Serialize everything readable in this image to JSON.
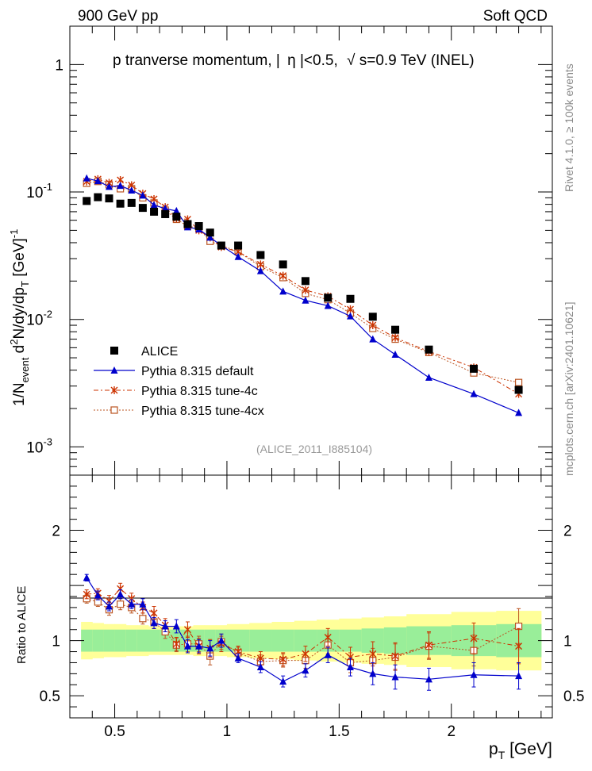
{
  "header": {
    "left": "900 GeV pp",
    "right": "Soft QCD"
  },
  "side": {
    "rivet": "Rivet 4.1.0, ≥ 100k events",
    "mcplots": "mcplots.cern.ch [arXiv:2401.10621]"
  },
  "colors": {
    "alice": "#000000",
    "default": "#0000cc",
    "tune4c": "#cc3300",
    "tune4cx": "#bb5522",
    "band_inner": "#99ee99",
    "band_outer": "#ffff99"
  },
  "chart_data": [
    {
      "type": "scatter",
      "panel": "main",
      "title": "p tranverse momentum, | η|<0.5, √s=0.9 TeV (INEL)",
      "title_parts": [
        "p tranverse momentum, |",
        "η",
        "|<0.5,",
        "s=0.9 TeV (INEL)"
      ],
      "ylabel": "1/N_event d²N/dy/dp_T [GeV]⁻¹",
      "ylabel_parts": [
        "1/N",
        "event",
        " d",
        "2",
        "N/dy/dp",
        "T",
        " [GeV]",
        "-1"
      ],
      "yscale": "log",
      "ylim": [
        0.0006,
        2.0
      ],
      "xlim": [
        0.3,
        2.45
      ],
      "yticks": [
        {
          "value": 1,
          "label": "1",
          "exp": ""
        },
        {
          "value": 0.1,
          "label": "10",
          "exp": "-1"
        },
        {
          "value": 0.01,
          "label": "10",
          "exp": "-2"
        },
        {
          "value": 0.001,
          "label": "10",
          "exp": "-3"
        }
      ],
      "watermark": "(ALICE_2011_I885104)",
      "legend": [
        {
          "key": "alice",
          "label": "ALICE"
        },
        {
          "key": "default",
          "label": "Pythia 8.315 default"
        },
        {
          "key": "tune4c",
          "label": "Pythia 8.315 tune-4c"
        },
        {
          "key": "tune4cx",
          "label": "Pythia 8.315 tune-4cx"
        }
      ],
      "x": [
        0.375,
        0.425,
        0.475,
        0.525,
        0.575,
        0.625,
        0.675,
        0.725,
        0.775,
        0.825,
        0.875,
        0.925,
        0.975,
        1.05,
        1.15,
        1.25,
        1.35,
        1.45,
        1.55,
        1.65,
        1.75,
        1.9,
        2.1,
        2.3
      ],
      "series": [
        {
          "key": "alice",
          "name": "ALICE",
          "marker": "square",
          "values": [
            0.085,
            0.091,
            0.089,
            0.081,
            0.082,
            0.075,
            0.07,
            0.067,
            0.064,
            0.056,
            0.054,
            0.048,
            0.038,
            0.038,
            0.032,
            0.027,
            0.02,
            0.0148,
            0.0145,
            0.0105,
            0.0083,
            0.0058,
            0.0041,
            0.0028
          ]
        },
        {
          "key": "default",
          "name": "Pythia 8.315 default",
          "marker": "triangle",
          "values": [
            0.128,
            0.122,
            0.11,
            0.112,
            0.103,
            0.094,
            0.079,
            0.074,
            0.071,
            0.053,
            0.051,
            0.044,
            0.038,
            0.031,
            0.024,
            0.0166,
            0.0141,
            0.0128,
            0.0106,
            0.007,
            0.0053,
            0.0035,
            0.0026,
            0.00185
          ]
        },
        {
          "key": "tune4c",
          "name": "Pythia 8.315 tune-4c",
          "marker": "star",
          "values": [
            0.121,
            0.126,
            0.118,
            0.124,
            0.113,
            0.097,
            0.088,
            0.076,
            0.062,
            0.061,
            0.05,
            0.044,
            0.037,
            0.034,
            0.027,
            0.022,
            0.017,
            0.0152,
            0.012,
            0.009,
            0.0072,
            0.0056,
            0.0042,
            0.0026
          ]
        },
        {
          "key": "tune4cx",
          "name": "Pythia 8.315 tune-4cx",
          "marker": "opensquare",
          "values": [
            0.117,
            0.121,
            0.114,
            0.106,
            0.106,
            0.09,
            0.082,
            0.072,
            0.061,
            0.054,
            0.052,
            0.041,
            0.038,
            0.034,
            0.026,
            0.0213,
            0.016,
            0.0143,
            0.0112,
            0.0085,
            0.007,
            0.0055,
            0.0038,
            0.0032
          ]
        }
      ]
    },
    {
      "type": "scatter",
      "panel": "ratio",
      "ylabel": "Ratio to ALICE",
      "xlabel": "p_T [GeV]",
      "xlabel_parts": [
        "p",
        "T",
        " [GeV]"
      ],
      "ylim": [
        0.3,
        2.5
      ],
      "xlim": [
        0.3,
        2.45
      ],
      "yticks": [
        0.5,
        1,
        2
      ],
      "ytick_labels": [
        "0.5",
        "1",
        "2"
      ],
      "xticks": [
        0.5,
        1,
        1.5,
        2
      ],
      "xtick_labels": [
        "0.5",
        "1",
        "1.5",
        "2"
      ],
      "x": [
        0.375,
        0.425,
        0.475,
        0.525,
        0.575,
        0.625,
        0.675,
        0.725,
        0.775,
        0.825,
        0.875,
        0.925,
        0.975,
        1.05,
        1.15,
        1.25,
        1.35,
        1.45,
        1.55,
        1.65,
        1.75,
        1.9,
        2.1,
        2.3
      ],
      "x_edges": [
        0.35,
        0.4,
        0.45,
        0.5,
        0.55,
        0.6,
        0.65,
        0.7,
        0.75,
        0.8,
        0.85,
        0.9,
        0.95,
        1.0,
        1.1,
        1.2,
        1.3,
        1.4,
        1.5,
        1.6,
        1.7,
        1.8,
        2.0,
        2.2,
        2.4
      ],
      "band_inner": [
        0.1,
        0.1,
        0.1,
        0.1,
        0.1,
        0.1,
        0.1,
        0.1,
        0.1,
        0.1,
        0.1,
        0.1,
        0.1,
        0.1,
        0.1,
        0.1,
        0.1,
        0.1,
        0.1,
        0.11,
        0.12,
        0.13,
        0.14,
        0.15
      ],
      "band_outer": [
        0.17,
        0.16,
        0.15,
        0.15,
        0.14,
        0.14,
        0.13,
        0.13,
        0.13,
        0.13,
        0.14,
        0.14,
        0.14,
        0.15,
        0.16,
        0.17,
        0.18,
        0.19,
        0.2,
        0.21,
        0.22,
        0.24,
        0.26,
        0.27
      ],
      "series": [
        {
          "key": "default",
          "name": "Pythia 8.315 default",
          "marker": "triangle",
          "values": [
            1.57,
            1.41,
            1.31,
            1.42,
            1.33,
            1.33,
            1.16,
            1.13,
            1.13,
            0.95,
            0.95,
            0.93,
            1.0,
            0.84,
            0.76,
            0.63,
            0.73,
            0.87,
            0.76,
            0.7,
            0.67,
            0.65,
            0.69,
            0.68
          ],
          "errors": [
            0.03,
            0.04,
            0.04,
            0.04,
            0.04,
            0.05,
            0.05,
            0.05,
            0.06,
            0.06,
            0.06,
            0.07,
            0.06,
            0.04,
            0.05,
            0.05,
            0.06,
            0.07,
            0.08,
            0.1,
            0.11,
            0.1,
            0.11,
            0.12
          ]
        },
        {
          "key": "tune4c",
          "name": "Pythia 8.315 tune-4c",
          "marker": "star",
          "values": [
            1.42,
            1.43,
            1.36,
            1.47,
            1.38,
            1.3,
            1.25,
            1.14,
            0.97,
            1.1,
            0.95,
            0.93,
            0.97,
            0.9,
            0.84,
            0.83,
            0.88,
            1.03,
            0.85,
            0.88,
            0.86,
            0.96,
            1.02,
            0.95
          ],
          "errors": [
            0.04,
            0.04,
            0.05,
            0.05,
            0.05,
            0.05,
            0.06,
            0.06,
            0.06,
            0.07,
            0.07,
            0.08,
            0.07,
            0.05,
            0.06,
            0.06,
            0.07,
            0.08,
            0.09,
            0.11,
            0.12,
            0.12,
            0.14,
            0.16
          ]
        },
        {
          "key": "tune4cx",
          "name": "Pythia 8.315 tune-4cx",
          "marker": "opensquare",
          "values": [
            1.38,
            1.35,
            1.28,
            1.33,
            1.3,
            1.2,
            1.17,
            1.08,
            0.96,
            0.97,
            0.97,
            0.86,
            0.99,
            0.89,
            0.81,
            0.82,
            0.82,
            0.96,
            0.8,
            0.82,
            0.85,
            0.95,
            0.91,
            1.13
          ],
          "errors": [
            0.04,
            0.04,
            0.05,
            0.05,
            0.05,
            0.05,
            0.06,
            0.06,
            0.06,
            0.07,
            0.07,
            0.08,
            0.07,
            0.05,
            0.06,
            0.06,
            0.07,
            0.08,
            0.09,
            0.11,
            0.12,
            0.12,
            0.14,
            0.16
          ]
        }
      ]
    }
  ]
}
